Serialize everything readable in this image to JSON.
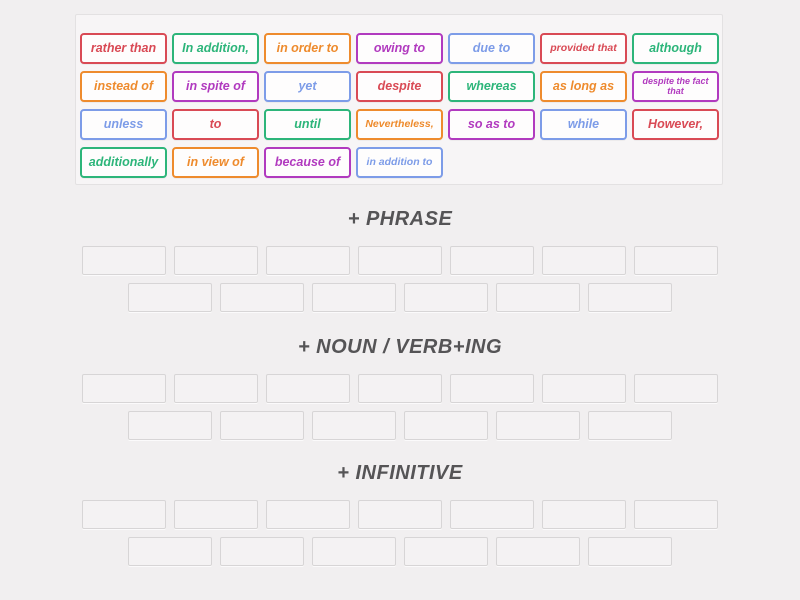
{
  "palette": {
    "red": "#d94a55",
    "green": "#2db57a",
    "orange": "#ee8b2d",
    "purple": "#b13abf",
    "blue": "#7d9ce8"
  },
  "page_background": "#f1eff0",
  "tray": {
    "tiles": [
      {
        "label": "rather than",
        "color": "red"
      },
      {
        "label": "In addition,",
        "color": "green"
      },
      {
        "label": "in order to",
        "color": "orange"
      },
      {
        "label": "owing to",
        "color": "purple"
      },
      {
        "label": "due to",
        "color": "blue"
      },
      {
        "label": "provided that",
        "color": "red",
        "size": "sm"
      },
      {
        "label": "although",
        "color": "green"
      },
      {
        "label": "instead of",
        "color": "orange"
      },
      {
        "label": "in spite of",
        "color": "purple"
      },
      {
        "label": "yet",
        "color": "blue"
      },
      {
        "label": "despite",
        "color": "red"
      },
      {
        "label": "whereas",
        "color": "green"
      },
      {
        "label": "as long as",
        "color": "orange"
      },
      {
        "label": "despite the fact that",
        "color": "purple",
        "size": "xs"
      },
      {
        "label": "unless",
        "color": "blue"
      },
      {
        "label": "to",
        "color": "red"
      },
      {
        "label": "until",
        "color": "green"
      },
      {
        "label": "Nevertheless,",
        "color": "orange",
        "size": "sm"
      },
      {
        "label": "so as to",
        "color": "purple"
      },
      {
        "label": "while",
        "color": "blue"
      },
      {
        "label": "However,",
        "color": "red"
      },
      {
        "label": "additionally",
        "color": "green"
      },
      {
        "label": "in view of",
        "color": "orange"
      },
      {
        "label": "because of",
        "color": "purple"
      },
      {
        "label": "in addition to",
        "color": "blue",
        "size": "sm"
      }
    ]
  },
  "sections": [
    {
      "title": "+ PHRASE",
      "slot_rows": [
        7,
        6
      ]
    },
    {
      "title": "+ NOUN / VERB+ING",
      "slot_rows": [
        7,
        6
      ]
    },
    {
      "title": "+ INFINITIVE",
      "slot_rows": [
        7,
        6
      ]
    }
  ]
}
